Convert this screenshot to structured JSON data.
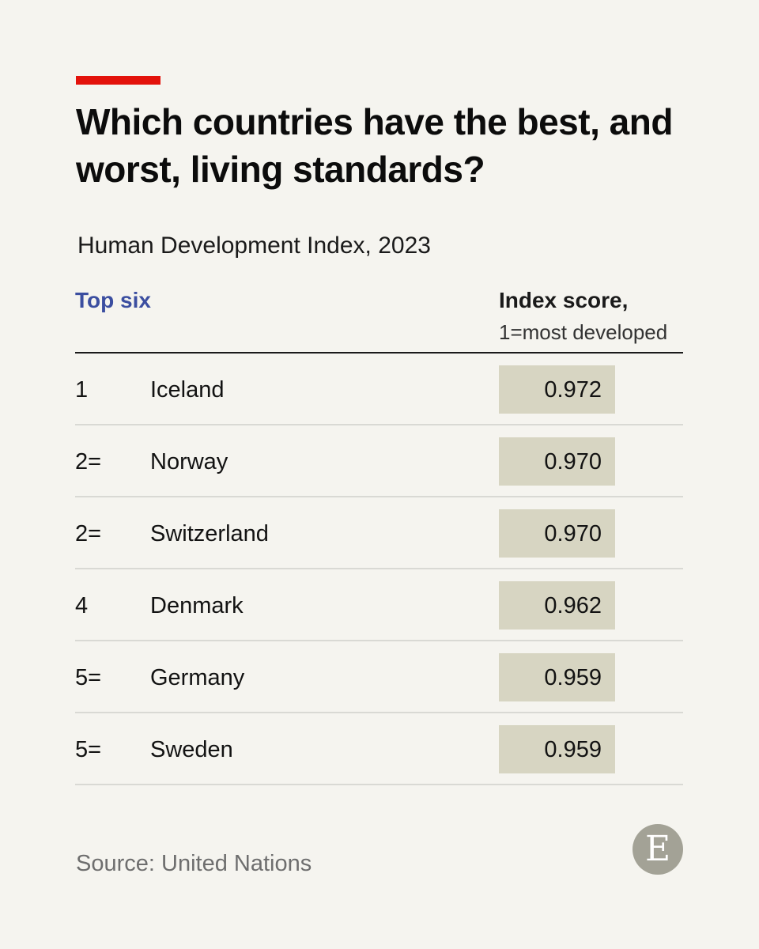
{
  "chart_data": {
    "type": "table",
    "title": "Which countries have the best, and worst, living standards?",
    "subtitle": "Human Development Index, 2023",
    "section_label": "Top six",
    "column_header": "Index score,",
    "column_subheader": "1=most developed",
    "rows": [
      {
        "rank": "1",
        "country": "Iceland",
        "score": "0.972"
      },
      {
        "rank": "2=",
        "country": "Norway",
        "score": "0.970"
      },
      {
        "rank": "2=",
        "country": "Switzerland",
        "score": "0.970"
      },
      {
        "rank": "4",
        "country": "Denmark",
        "score": "0.962"
      },
      {
        "rank": "5=",
        "country": "Germany",
        "score": "0.959"
      },
      {
        "rank": "5=",
        "country": "Sweden",
        "score": "0.959"
      }
    ],
    "source": "Source: United Nations"
  },
  "logo": {
    "letter": "E",
    "icon": "economist-logo-icon"
  },
  "colors": {
    "accent_red": "#e3120b",
    "section_blue": "#3b4ea0",
    "score_box": "#d7d5c2",
    "background": "#f5f4ef"
  }
}
